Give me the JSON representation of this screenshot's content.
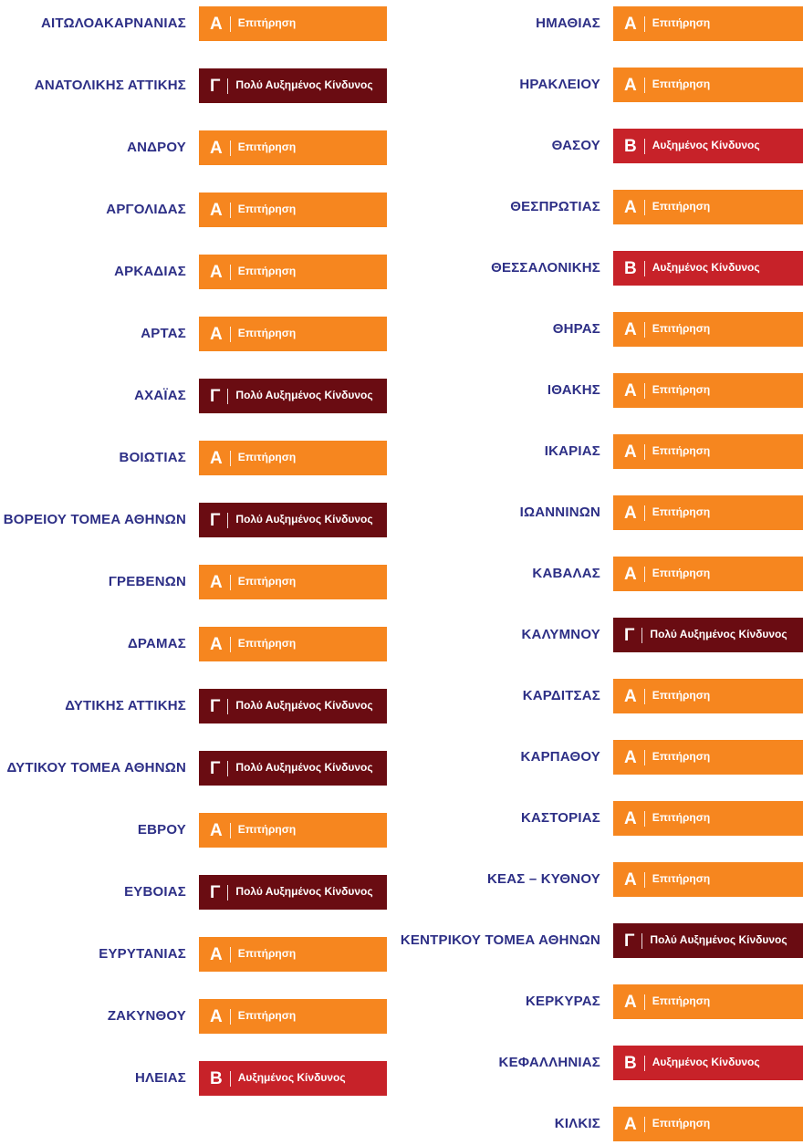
{
  "palette": {
    "background": "#FFFFFF",
    "region_label_color": "#2D2F86",
    "badge_text_color": "#FFFFFF"
  },
  "levels": {
    "A": {
      "letter": "Α",
      "label": "Επιτήρηση",
      "color": "#F6861F"
    },
    "B": {
      "letter": "Β",
      "label": "Αυξημένος Κίνδυνος",
      "color": "#C72229"
    },
    "C": {
      "letter": "Γ",
      "label": "Πολύ Αυξημένος Κίνδυνος",
      "color": "#6A0C12"
    }
  },
  "columns": [
    {
      "rows": [
        {
          "region": "ΑΙΤΩΛΟΑΚΑΡΝΑΝΙΑΣ",
          "level": "A"
        },
        {
          "region": "ΑΝΑΤΟΛΙΚΗΣ ΑΤΤΙΚΗΣ",
          "level": "C"
        },
        {
          "region": "ΑΝΔΡΟΥ",
          "level": "A"
        },
        {
          "region": "ΑΡΓΟΛΙΔΑΣ",
          "level": "A"
        },
        {
          "region": "ΑΡΚΑΔΙΑΣ",
          "level": "A"
        },
        {
          "region": "ΑΡΤΑΣ",
          "level": "A"
        },
        {
          "region": "ΑΧΑΪΑΣ",
          "level": "C"
        },
        {
          "region": "ΒΟΙΩΤΙΑΣ",
          "level": "A"
        },
        {
          "region": "ΒΟΡΕΙΟΥ ΤΟΜΕΑ ΑΘΗΝΩΝ",
          "level": "C"
        },
        {
          "region": "ΓΡΕΒΕΝΩΝ",
          "level": "A"
        },
        {
          "region": "ΔΡΑΜΑΣ",
          "level": "A"
        },
        {
          "region": "ΔΥΤΙΚΗΣ ΑΤΤΙΚΗΣ",
          "level": "C"
        },
        {
          "region": "ΔΥΤΙΚΟΥ ΤΟΜΕΑ ΑΘΗΝΩΝ",
          "level": "C"
        },
        {
          "region": "ΕΒΡΟΥ",
          "level": "A"
        },
        {
          "region": "ΕΥΒΟΙΑΣ",
          "level": "C"
        },
        {
          "region": "ΕΥΡΥΤΑΝΙΑΣ",
          "level": "A"
        },
        {
          "region": "ΖΑΚΥΝΘΟΥ",
          "level": "A"
        },
        {
          "region": "ΗΛΕΙΑΣ",
          "level": "B"
        }
      ]
    },
    {
      "rows": [
        {
          "region": "ΗΜΑΘΙΑΣ",
          "level": "A"
        },
        {
          "region": "ΗΡΑΚΛΕΙΟΥ",
          "level": "A"
        },
        {
          "region": "ΘΑΣΟΥ",
          "level": "B"
        },
        {
          "region": "ΘΕΣΠΡΩΤΙΑΣ",
          "level": "A"
        },
        {
          "region": "ΘΕΣΣΑΛΟΝΙΚΗΣ",
          "level": "B"
        },
        {
          "region": "ΘΗΡΑΣ",
          "level": "A"
        },
        {
          "region": "ΙΘΑΚΗΣ",
          "level": "A"
        },
        {
          "region": "ΙΚΑΡΙΑΣ",
          "level": "A"
        },
        {
          "region": "ΙΩΑΝΝΙΝΩΝ",
          "level": "A"
        },
        {
          "region": "ΚΑΒΑΛΑΣ",
          "level": "A"
        },
        {
          "region": "ΚΑΛΥΜΝΟΥ",
          "level": "C"
        },
        {
          "region": "ΚΑΡΔΙΤΣΑΣ",
          "level": "A"
        },
        {
          "region": "ΚΑΡΠΑΘΟΥ",
          "level": "A"
        },
        {
          "region": "ΚΑΣΤΟΡΙΑΣ",
          "level": "A"
        },
        {
          "region": "ΚΕΑΣ – ΚΥΘΝΟΥ",
          "level": "A"
        },
        {
          "region": "ΚΕΝΤΡΙΚΟΥ ΤΟΜΕΑ ΑΘΗΝΩΝ",
          "level": "C"
        },
        {
          "region": "ΚΕΡΚΥΡΑΣ",
          "level": "A"
        },
        {
          "region": "ΚΕΦΑΛΛΗΝΙΑΣ",
          "level": "B"
        },
        {
          "region": "ΚΙΛΚΙΣ",
          "level": "A"
        }
      ]
    }
  ]
}
